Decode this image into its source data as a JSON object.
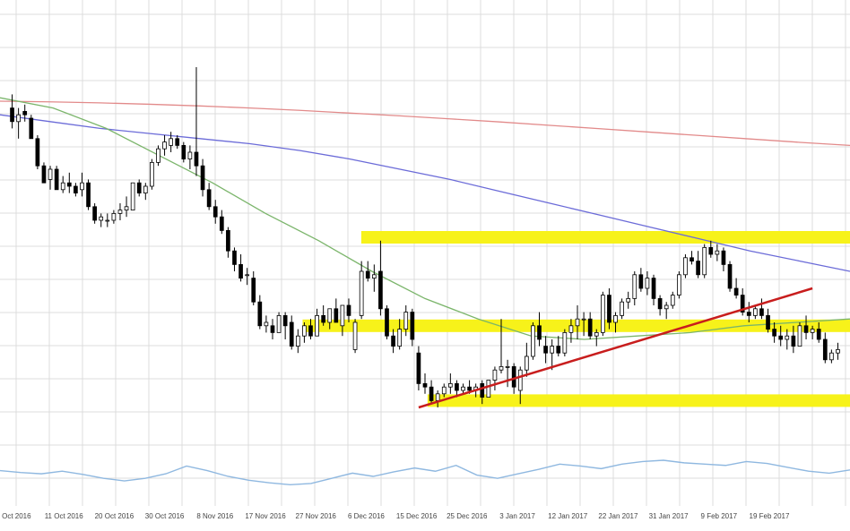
{
  "chart_data": {
    "type": "candlestick",
    "grid": true,
    "colors": {
      "bull": "#ffffff",
      "bear": "#000000",
      "wick": "#000000",
      "grid": "#dcdcdc",
      "ma_long": "#e28a8a",
      "ma_mid": "#6b6bd8",
      "ma_short": "#7bb56b",
      "oscillator": "#8fb8e0",
      "zone": "#f7f21a",
      "trendline": "#c81d1d"
    },
    "x_labels": [
      "2 Oct 2016",
      "11 Oct 2016",
      "20 Oct 2016",
      "30 Oct 2016",
      "8 Nov 2016",
      "17 Nov 2016",
      "27 Nov 2016",
      "6 Dec 2016",
      "15 Dec 2016",
      "25 Dec 2016",
      "3 Jan 2017",
      "12 Jan 2017",
      "22 Jan 2017",
      "31 Jan 2017",
      "9 Feb 2017",
      "19 Feb 2017"
    ],
    "price_range": [
      0,
      100
    ],
    "candles": [
      {
        "o": 88,
        "h": 92,
        "l": 82,
        "c": 84
      },
      {
        "o": 84,
        "h": 88,
        "l": 79,
        "c": 86
      },
      {
        "o": 87,
        "h": 89,
        "l": 84,
        "c": 86
      },
      {
        "o": 85,
        "h": 86,
        "l": 79,
        "c": 79
      },
      {
        "o": 79,
        "h": 80,
        "l": 70,
        "c": 71
      },
      {
        "o": 71,
        "h": 72,
        "l": 66,
        "c": 66
      },
      {
        "o": 67,
        "h": 71,
        "l": 64,
        "c": 70
      },
      {
        "o": 70,
        "h": 71,
        "l": 64,
        "c": 64
      },
      {
        "o": 64,
        "h": 68,
        "l": 63,
        "c": 66
      },
      {
        "o": 66,
        "h": 69,
        "l": 63,
        "c": 65
      },
      {
        "o": 65,
        "h": 66,
        "l": 62,
        "c": 63
      },
      {
        "o": 64,
        "h": 69,
        "l": 62,
        "c": 66
      },
      {
        "o": 66,
        "h": 67,
        "l": 58,
        "c": 59
      },
      {
        "o": 59,
        "h": 60,
        "l": 54,
        "c": 55
      },
      {
        "o": 55,
        "h": 57,
        "l": 53,
        "c": 56
      },
      {
        "o": 55,
        "h": 57,
        "l": 53,
        "c": 55
      },
      {
        "o": 55,
        "h": 58,
        "l": 54,
        "c": 57
      },
      {
        "o": 57,
        "h": 60,
        "l": 55,
        "c": 58
      },
      {
        "o": 58,
        "h": 62,
        "l": 56,
        "c": 59
      },
      {
        "o": 58,
        "h": 66,
        "l": 58,
        "c": 66
      },
      {
        "o": 66,
        "h": 67,
        "l": 62,
        "c": 63
      },
      {
        "o": 63,
        "h": 66,
        "l": 61,
        "c": 65
      },
      {
        "o": 65,
        "h": 73,
        "l": 64,
        "c": 72
      },
      {
        "o": 72,
        "h": 77,
        "l": 71,
        "c": 76
      },
      {
        "o": 76,
        "h": 80,
        "l": 74,
        "c": 78
      },
      {
        "o": 77,
        "h": 81,
        "l": 75,
        "c": 79
      },
      {
        "o": 79,
        "h": 80,
        "l": 76,
        "c": 77
      },
      {
        "o": 77,
        "h": 78,
        "l": 72,
        "c": 73
      },
      {
        "o": 73,
        "h": 77,
        "l": 70,
        "c": 75
      },
      {
        "o": 75,
        "h": 100,
        "l": 68,
        "c": 71
      },
      {
        "o": 71,
        "h": 73,
        "l": 62,
        "c": 64
      },
      {
        "o": 64,
        "h": 66,
        "l": 58,
        "c": 59
      },
      {
        "o": 59,
        "h": 61,
        "l": 54,
        "c": 56
      },
      {
        "o": 56,
        "h": 58,
        "l": 51,
        "c": 52
      },
      {
        "o": 52,
        "h": 53,
        "l": 44,
        "c": 46
      },
      {
        "o": 46,
        "h": 47,
        "l": 40,
        "c": 42
      },
      {
        "o": 42,
        "h": 45,
        "l": 37,
        "c": 38
      },
      {
        "o": 39,
        "h": 41,
        "l": 36,
        "c": 39
      },
      {
        "o": 38,
        "h": 40,
        "l": 30,
        "c": 31
      },
      {
        "o": 31,
        "h": 33,
        "l": 23,
        "c": 24
      },
      {
        "o": 24,
        "h": 27,
        "l": 22,
        "c": 25
      },
      {
        "o": 24,
        "h": 26,
        "l": 20,
        "c": 22
      },
      {
        "o": 22,
        "h": 28,
        "l": 22,
        "c": 27
      },
      {
        "o": 27,
        "h": 28,
        "l": 20,
        "c": 24
      },
      {
        "o": 25,
        "h": 27,
        "l": 17,
        "c": 18
      },
      {
        "o": 18,
        "h": 23,
        "l": 16,
        "c": 21
      },
      {
        "o": 21,
        "h": 25,
        "l": 19,
        "c": 24
      },
      {
        "o": 24,
        "h": 26,
        "l": 20,
        "c": 21
      },
      {
        "o": 21,
        "h": 29,
        "l": 21,
        "c": 27
      },
      {
        "o": 27,
        "h": 30,
        "l": 24,
        "c": 25
      },
      {
        "o": 25,
        "h": 29,
        "l": 23,
        "c": 29
      },
      {
        "o": 29,
        "h": 32,
        "l": 25,
        "c": 25
      },
      {
        "o": 24,
        "h": 30,
        "l": 21,
        "c": 30
      },
      {
        "o": 30,
        "h": 32,
        "l": 25,
        "c": 27
      },
      {
        "o": 17,
        "h": 26,
        "l": 16,
        "c": 25
      },
      {
        "o": 27,
        "h": 43,
        "l": 26,
        "c": 40
      },
      {
        "o": 40,
        "h": 43,
        "l": 37,
        "c": 38
      },
      {
        "o": 38,
        "h": 42,
        "l": 34,
        "c": 39
      },
      {
        "o": 40,
        "h": 49,
        "l": 27,
        "c": 29
      },
      {
        "o": 29,
        "h": 30,
        "l": 20,
        "c": 21
      },
      {
        "o": 21,
        "h": 23,
        "l": 16,
        "c": 18
      },
      {
        "o": 18,
        "h": 26,
        "l": 17,
        "c": 23
      },
      {
        "o": 23,
        "h": 30,
        "l": 21,
        "c": 28
      },
      {
        "o": 28,
        "h": 29,
        "l": 18,
        "c": 20
      },
      {
        "o": 16,
        "h": 18,
        "l": 5,
        "c": 7
      },
      {
        "o": 7,
        "h": 10,
        "l": 4,
        "c": 6
      },
      {
        "o": 6,
        "h": 8,
        "l": 1,
        "c": 2
      },
      {
        "o": 2,
        "h": 5,
        "l": 0,
        "c": 4
      },
      {
        "o": 4,
        "h": 7,
        "l": 3,
        "c": 6
      },
      {
        "o": 6,
        "h": 10,
        "l": 4,
        "c": 7
      },
      {
        "o": 7,
        "h": 8,
        "l": 3,
        "c": 5
      },
      {
        "o": 5,
        "h": 7,
        "l": 4,
        "c": 6
      },
      {
        "o": 6,
        "h": 8,
        "l": 4,
        "c": 5
      },
      {
        "o": 5,
        "h": 7,
        "l": 3,
        "c": 6
      },
      {
        "o": 7,
        "h": 8,
        "l": 1,
        "c": 3
      },
      {
        "o": 3,
        "h": 8,
        "l": 3,
        "c": 8
      },
      {
        "o": 8,
        "h": 12,
        "l": 5,
        "c": 11
      },
      {
        "o": 11,
        "h": 26,
        "l": 10,
        "c": 12
      },
      {
        "o": 12,
        "h": 14,
        "l": 6,
        "c": 12
      },
      {
        "o": 12,
        "h": 13,
        "l": 4,
        "c": 6
      },
      {
        "o": 5,
        "h": 12,
        "l": 1,
        "c": 11
      },
      {
        "o": 11,
        "h": 19,
        "l": 9,
        "c": 15
      },
      {
        "o": 15,
        "h": 25,
        "l": 14,
        "c": 24
      },
      {
        "o": 24,
        "h": 28,
        "l": 18,
        "c": 20
      },
      {
        "o": 18,
        "h": 21,
        "l": 13,
        "c": 16
      },
      {
        "o": 16,
        "h": 20,
        "l": 11,
        "c": 18
      },
      {
        "o": 18,
        "h": 21,
        "l": 15,
        "c": 16
      },
      {
        "o": 16,
        "h": 23,
        "l": 15,
        "c": 22
      },
      {
        "o": 22,
        "h": 26,
        "l": 19,
        "c": 24
      },
      {
        "o": 24,
        "h": 30,
        "l": 20,
        "c": 26
      },
      {
        "o": 26,
        "h": 28,
        "l": 21,
        "c": 26
      },
      {
        "o": 26,
        "h": 28,
        "l": 20,
        "c": 21
      },
      {
        "o": 21,
        "h": 23,
        "l": 18,
        "c": 22
      },
      {
        "o": 22,
        "h": 34,
        "l": 21,
        "c": 33
      },
      {
        "o": 33,
        "h": 35,
        "l": 23,
        "c": 25
      },
      {
        "o": 25,
        "h": 28,
        "l": 22,
        "c": 27
      },
      {
        "o": 27,
        "h": 32,
        "l": 26,
        "c": 31
      },
      {
        "o": 31,
        "h": 34,
        "l": 29,
        "c": 32
      },
      {
        "o": 32,
        "h": 40,
        "l": 30,
        "c": 39
      },
      {
        "o": 39,
        "h": 41,
        "l": 34,
        "c": 35
      },
      {
        "o": 35,
        "h": 40,
        "l": 33,
        "c": 38
      },
      {
        "o": 38,
        "h": 39,
        "l": 30,
        "c": 32
      },
      {
        "o": 32,
        "h": 33,
        "l": 27,
        "c": 29
      },
      {
        "o": 29,
        "h": 31,
        "l": 26,
        "c": 30
      },
      {
        "o": 30,
        "h": 34,
        "l": 29,
        "c": 33
      },
      {
        "o": 33,
        "h": 40,
        "l": 32,
        "c": 39
      },
      {
        "o": 39,
        "h": 45,
        "l": 38,
        "c": 44
      },
      {
        "o": 44,
        "h": 46,
        "l": 42,
        "c": 43
      },
      {
        "o": 43,
        "h": 46,
        "l": 38,
        "c": 39
      },
      {
        "o": 39,
        "h": 48,
        "l": 38,
        "c": 47
      },
      {
        "o": 47,
        "h": 49,
        "l": 44,
        "c": 45
      },
      {
        "o": 45,
        "h": 48,
        "l": 43,
        "c": 46
      },
      {
        "o": 46,
        "h": 47,
        "l": 40,
        "c": 42
      },
      {
        "o": 42,
        "h": 43,
        "l": 34,
        "c": 35
      },
      {
        "o": 35,
        "h": 38,
        "l": 32,
        "c": 33
      },
      {
        "o": 33,
        "h": 35,
        "l": 27,
        "c": 28
      },
      {
        "o": 28,
        "h": 31,
        "l": 25,
        "c": 27
      },
      {
        "o": 27,
        "h": 30,
        "l": 26,
        "c": 29
      },
      {
        "o": 29,
        "h": 32,
        "l": 26,
        "c": 27
      },
      {
        "o": 27,
        "h": 29,
        "l": 22,
        "c": 23
      },
      {
        "o": 23,
        "h": 25,
        "l": 19,
        "c": 21
      },
      {
        "o": 21,
        "h": 24,
        "l": 18,
        "c": 20
      },
      {
        "o": 20,
        "h": 23,
        "l": 17,
        "c": 21
      },
      {
        "o": 21,
        "h": 24,
        "l": 16,
        "c": 18
      },
      {
        "o": 18,
        "h": 25,
        "l": 18,
        "c": 24
      },
      {
        "o": 24,
        "h": 27,
        "l": 20,
        "c": 22
      },
      {
        "o": 22,
        "h": 24,
        "l": 20,
        "c": 23
      },
      {
        "o": 23,
        "h": 25,
        "l": 19,
        "c": 20
      },
      {
        "o": 20,
        "h": 22,
        "l": 13,
        "c": 14
      },
      {
        "o": 14,
        "h": 17,
        "l": 13,
        "c": 16
      },
      {
        "o": 16,
        "h": 19,
        "l": 14,
        "c": 17
      }
    ],
    "moving_averages": [
      {
        "key": "ma_long",
        "values": [
          90,
          89.8,
          89.5,
          89.1,
          88.6,
          88,
          87.3,
          86.5,
          85.7,
          84.8,
          83.9,
          82.9,
          81.9,
          80.9,
          79.9,
          78.9,
          77.9,
          77
        ]
      },
      {
        "key": "ma_mid",
        "values": [
          86,
          84,
          82,
          80.5,
          79,
          77.5,
          75.5,
          73,
          70,
          67,
          63.5,
          60,
          56.5,
          53,
          49.5,
          46,
          43,
          40
        ]
      },
      {
        "key": "ma_short",
        "values": [
          91,
          88,
          82,
          74,
          66,
          57,
          49,
          40,
          32,
          26,
          21,
          20,
          21,
          22,
          24,
          25,
          26
        ]
      }
    ],
    "oscillator": [
      34,
      31,
      29,
      33,
      28,
      22,
      18,
      22,
      29,
      41,
      34,
      25,
      19,
      15,
      12,
      14,
      22,
      30,
      25,
      32,
      38,
      33,
      42,
      27,
      22,
      29,
      36,
      44,
      41,
      37,
      44,
      48,
      50,
      46,
      44,
      42,
      48,
      45,
      39,
      33,
      30,
      35
    ],
    "support_zones": [
      {
        "from": 0.425,
        "to": 1.0,
        "price": 50
      },
      {
        "from": 0.356,
        "to": 1.0,
        "price": 24
      },
      {
        "from": 0.503,
        "to": 1.0,
        "price": 2
      }
    ],
    "trendline": {
      "from": [
        64,
        0
      ],
      "to": [
        126,
        35
      ]
    }
  }
}
